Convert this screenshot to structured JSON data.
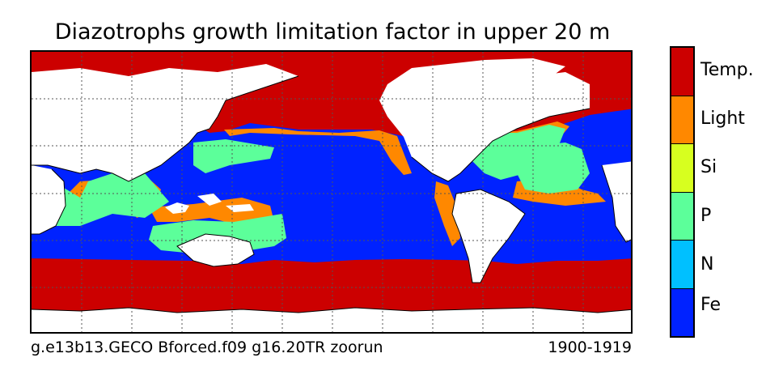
{
  "title": "Diazotrophs growth limitation factor in upper 20 m",
  "footer": {
    "case_name": "g.e13b13.GECO Bforced.f09 g16.20TR zoorun",
    "years": "1900-1919"
  },
  "legend": {
    "categories": [
      {
        "label": "Temp.",
        "color": "#cc0000"
      },
      {
        "label": "Light",
        "color": "#ff8800"
      },
      {
        "label": "Si",
        "color": "#d7ff1f"
      },
      {
        "label": "P",
        "color": "#5cff9a"
      },
      {
        "label": "N",
        "color": "#00c0ff"
      },
      {
        "label": "Fe",
        "color": "#0022ff"
      }
    ]
  },
  "map": {
    "projection": "equirectangular global ocean, Pacific-centered",
    "gridlines": "dotted",
    "land_color": "#ffffff",
    "coastline_color": "#000000"
  }
}
